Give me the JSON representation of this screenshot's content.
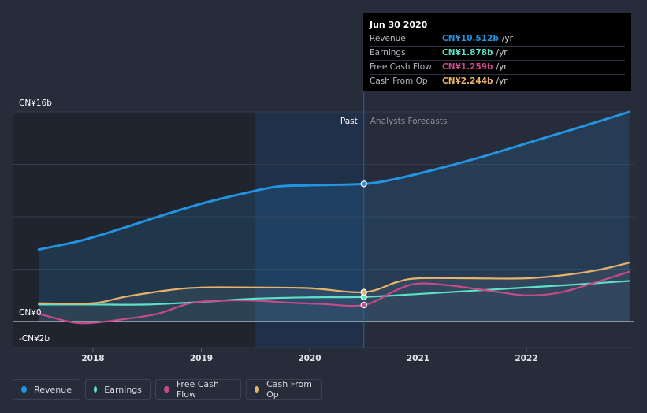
{
  "colors": {
    "revenue": "#2394df",
    "earnings": "#5be2c7",
    "free_cash_flow": "#c84b89",
    "cash_from_op": "#e7b369",
    "background": "#262c3a"
  },
  "tooltip": {
    "date": "Jun 30 2020",
    "rows": [
      {
        "label": "Revenue",
        "value": "CN¥10.512b",
        "unit": "/yr"
      },
      {
        "label": "Earnings",
        "value": "CN¥1.878b",
        "unit": "/yr"
      },
      {
        "label": "Free Cash Flow",
        "value": "CN¥1.259b",
        "unit": "/yr"
      },
      {
        "label": "Cash From Op",
        "value": "CN¥2.244b",
        "unit": "/yr"
      }
    ]
  },
  "legend": {
    "revenue": "Revenue",
    "earnings": "Earnings",
    "free_cash_flow": "Free Cash Flow",
    "cash_from_op": "Cash From Op"
  },
  "chart_data": {
    "type": "line",
    "title": "",
    "xlabel": "",
    "ylabel": "",
    "y_tick_labels": [
      "CN¥16b",
      "CN¥0",
      "-CN¥2b"
    ],
    "y_ticks": [
      16,
      0,
      -2
    ],
    "ylim": [
      -2,
      16
    ],
    "x_tick_labels": [
      "2018",
      "2019",
      "2020",
      "2021",
      "2022"
    ],
    "x_ticks": [
      2018.0,
      2019.0,
      2020.0,
      2021.0,
      2022.0
    ],
    "xlim": [
      2017.25,
      2022.95
    ],
    "past_label": "Past",
    "forecast_label": "Analysts Forecasts",
    "past_shade_start": 2019.5,
    "divider_x": 2020.5,
    "marker_x": 2020.5,
    "series": [
      {
        "name": "Revenue",
        "key": "revenue",
        "x": [
          2017.5,
          2017.9,
          2018.3,
          2018.6,
          2019.0,
          2019.4,
          2019.7,
          2020.0,
          2020.5,
          2020.8,
          2021.2,
          2021.6,
          2022.0,
          2022.4,
          2022.95
        ],
        "values": [
          5.5,
          6.2,
          7.2,
          8.0,
          9.0,
          9.8,
          10.3,
          10.4,
          10.51,
          10.9,
          11.7,
          12.6,
          13.6,
          14.6,
          16.0
        ]
      },
      {
        "name": "Earnings",
        "key": "earnings",
        "x": [
          2017.5,
          2018.0,
          2018.5,
          2019.0,
          2019.5,
          2020.0,
          2020.5,
          2021.0,
          2021.5,
          2022.0,
          2022.5,
          2022.95
        ],
        "values": [
          1.3,
          1.3,
          1.3,
          1.5,
          1.75,
          1.85,
          1.88,
          2.1,
          2.35,
          2.6,
          2.85,
          3.1
        ]
      },
      {
        "name": "Free Cash Flow",
        "key": "free_cash_flow",
        "x": [
          2017.5,
          2017.8,
          2018.0,
          2018.3,
          2018.6,
          2018.9,
          2019.2,
          2019.5,
          2019.8,
          2020.1,
          2020.5,
          2020.8,
          2021.0,
          2021.3,
          2021.7,
          2022.0,
          2022.3,
          2022.6,
          2022.95
        ],
        "values": [
          0.6,
          -0.05,
          -0.1,
          0.2,
          0.6,
          1.4,
          1.6,
          1.6,
          1.45,
          1.35,
          1.26,
          2.4,
          2.9,
          2.75,
          2.3,
          2.0,
          2.2,
          2.9,
          3.8
        ]
      },
      {
        "name": "Cash From Op",
        "key": "cash_from_op",
        "x": [
          2017.5,
          2018.0,
          2018.3,
          2018.7,
          2019.0,
          2019.5,
          2020.0,
          2020.5,
          2020.8,
          2021.0,
          2021.5,
          2022.0,
          2022.4,
          2022.7,
          2022.95
        ],
        "values": [
          1.4,
          1.4,
          1.9,
          2.4,
          2.6,
          2.6,
          2.55,
          2.24,
          3.0,
          3.3,
          3.3,
          3.3,
          3.6,
          4.0,
          4.5
        ]
      }
    ]
  }
}
